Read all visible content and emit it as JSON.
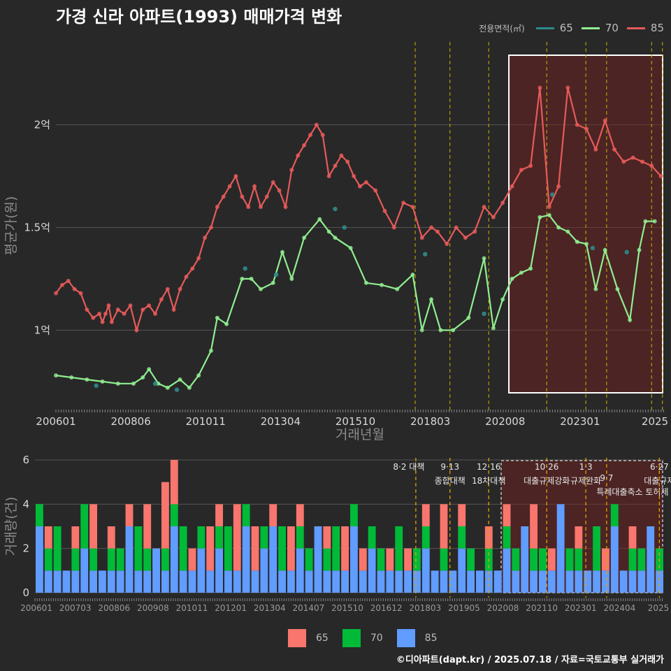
{
  "title": "가경 신라 아파트(1993) 매매가격 변화",
  "legend": {
    "title": "전용면적(㎡)",
    "items": [
      {
        "label": "65",
        "color": "#2e8b8b"
      },
      {
        "label": "70",
        "color": "#90ee90"
      },
      {
        "label": "85",
        "color": "#e85a5a"
      }
    ]
  },
  "bar_legend": [
    {
      "label": "65",
      "color": "#f8766d"
    },
    {
      "label": "70",
      "color": "#00ba38"
    },
    {
      "label": "85",
      "color": "#619cff"
    }
  ],
  "footer": "©디아파트(dapt.kr) / 2025.07.18 / 자료=국토교통부 실거래가",
  "chart_data": [
    {
      "type": "line",
      "title": "가경 신라 아파트(1993) 매매가격 변화",
      "xlabel": "거래년월",
      "ylabel": "평균가(원)",
      "x_ticks": [
        "200601",
        "200806",
        "201011",
        "201304",
        "201510",
        "201803",
        "202008",
        "202301",
        "2025"
      ],
      "y_ticks": [
        {
          "value": 1.0,
          "label": "1억"
        },
        {
          "value": 1.5,
          "label": "1.5억"
        },
        {
          "value": 2.0,
          "label": "2억"
        }
      ],
      "ylim": [
        0.6,
        2.42
      ],
      "xlim": [
        2006.0,
        2025.6
      ],
      "policy_lines": [
        2017.58,
        2018.7,
        2019.95,
        2021.82,
        2023.08,
        2023.75,
        2025.2,
        2025.55
      ],
      "highlight_range": [
        2020.6,
        2025.6
      ],
      "series": [
        {
          "name": "85",
          "color": "#e85a5a",
          "x": [
            2006.0,
            2006.2,
            2006.4,
            2006.6,
            2006.8,
            2007.0,
            2007.2,
            2007.4,
            2007.5,
            2007.6,
            2007.7,
            2007.8,
            2008.0,
            2008.2,
            2008.4,
            2008.6,
            2008.8,
            2009.0,
            2009.2,
            2009.4,
            2009.6,
            2009.8,
            2010.0,
            2010.2,
            2010.4,
            2010.6,
            2010.8,
            2011.0,
            2011.2,
            2011.4,
            2011.6,
            2011.8,
            2012.0,
            2012.2,
            2012.4,
            2012.6,
            2012.8,
            2013.0,
            2013.2,
            2013.4,
            2013.6,
            2013.8,
            2014.0,
            2014.2,
            2014.4,
            2014.6,
            2014.8,
            2015.0,
            2015.2,
            2015.4,
            2015.6,
            2015.8,
            2016.0,
            2016.3,
            2016.6,
            2016.9,
            2017.2,
            2017.5,
            2017.8,
            2018.1,
            2018.3,
            2018.6,
            2018.9,
            2019.2,
            2019.5,
            2019.8,
            2020.1,
            2020.4,
            2020.7,
            2021.0,
            2021.3,
            2021.6,
            2021.9,
            2022.2,
            2022.5,
            2022.8,
            2023.1,
            2023.4,
            2023.7,
            2024.0,
            2024.3,
            2024.6,
            2024.9,
            2025.2,
            2025.5
          ],
          "values": [
            1.18,
            1.22,
            1.24,
            1.2,
            1.18,
            1.1,
            1.06,
            1.08,
            1.04,
            1.08,
            1.12,
            1.04,
            1.1,
            1.08,
            1.12,
            1.0,
            1.1,
            1.12,
            1.08,
            1.15,
            1.2,
            1.1,
            1.2,
            1.26,
            1.3,
            1.35,
            1.45,
            1.5,
            1.6,
            1.65,
            1.7,
            1.75,
            1.65,
            1.6,
            1.7,
            1.6,
            1.65,
            1.72,
            1.68,
            1.6,
            1.78,
            1.85,
            1.9,
            1.95,
            2.0,
            1.95,
            1.75,
            1.8,
            1.85,
            1.82,
            1.75,
            1.7,
            1.72,
            1.68,
            1.58,
            1.5,
            1.62,
            1.6,
            1.45,
            1.5,
            1.48,
            1.42,
            1.5,
            1.45,
            1.48,
            1.6,
            1.55,
            1.62,
            1.7,
            1.78,
            1.8,
            2.18,
            1.6,
            1.7,
            2.18,
            2.0,
            1.98,
            1.88,
            2.02,
            1.88,
            1.82,
            1.84,
            1.82,
            1.8,
            1.75
          ]
        },
        {
          "name": "70",
          "color": "#90ee90",
          "x": [
            2006.0,
            2006.5,
            2007.0,
            2007.5,
            2008.0,
            2008.5,
            2008.8,
            2009.0,
            2009.3,
            2009.6,
            2010.0,
            2010.3,
            2010.6,
            2011.0,
            2011.2,
            2011.5,
            2012.0,
            2012.3,
            2012.6,
            2013.0,
            2013.3,
            2013.6,
            2014.0,
            2014.5,
            2014.8,
            2015.0,
            2015.5,
            2016.0,
            2016.5,
            2017.0,
            2017.5,
            2017.8,
            2018.1,
            2018.4,
            2018.8,
            2019.3,
            2019.8,
            2020.1,
            2020.4,
            2020.7,
            2021.0,
            2021.3,
            2021.6,
            2021.9,
            2022.2,
            2022.5,
            2022.8,
            2023.1,
            2023.4,
            2023.7,
            2024.1,
            2024.5,
            2024.8,
            2025.0,
            2025.3
          ],
          "values": [
            0.78,
            0.77,
            0.76,
            0.75,
            0.74,
            0.74,
            0.77,
            0.81,
            0.74,
            0.72,
            0.76,
            0.72,
            0.78,
            0.9,
            1.06,
            1.03,
            1.25,
            1.25,
            1.2,
            1.23,
            1.38,
            1.25,
            1.45,
            1.54,
            1.48,
            1.45,
            1.4,
            1.23,
            1.22,
            1.2,
            1.27,
            1.0,
            1.15,
            1.0,
            1.0,
            1.06,
            1.35,
            1.01,
            1.15,
            1.25,
            1.28,
            1.3,
            1.55,
            1.56,
            1.5,
            1.48,
            1.43,
            1.42,
            1.2,
            1.39,
            1.2,
            1.05,
            1.39,
            1.53,
            1.53
          ]
        }
      ]
    },
    {
      "type": "bar",
      "title": "",
      "xlabel": "",
      "ylabel": "거래량(건)",
      "y_ticks": [
        "0",
        "2",
        "4",
        "6"
      ],
      "ylim": [
        0,
        6
      ],
      "x_ticks": [
        "200601",
        "200703",
        "200806",
        "200908",
        "201011",
        "201201",
        "201304",
        "201407",
        "201510",
        "201612",
        "201803",
        "201905",
        "202008",
        "202110",
        "202301",
        "202404",
        "2025"
      ],
      "policy_annotations": [
        {
          "x": 2017.6,
          "label": "8·2 대책",
          "label2": ""
        },
        {
          "x": 2018.7,
          "label": "9·13",
          "label2": "종합대책"
        },
        {
          "x": 2019.95,
          "label": "12·16",
          "label2": "18차대책"
        },
        {
          "x": 2021.82,
          "label": "10·26",
          "label2": "대출규제강화"
        },
        {
          "x": 2023.08,
          "label": "1·3",
          "label2": "규제완화"
        },
        {
          "x": 2023.75,
          "label": "9·7",
          "label2": "특례대출축소 토허제 해제"
        },
        {
          "x": 2025.45,
          "label": "6·27",
          "label2": "대출규제"
        }
      ],
      "highlight_range": [
        2020.6,
        2025.6
      ],
      "series": [
        {
          "name": "65",
          "color": "#f8766d",
          "values": [
            0,
            1,
            0,
            0,
            1,
            0,
            2,
            0,
            1,
            0,
            1,
            0,
            2,
            0,
            3,
            2,
            0,
            1,
            0,
            2,
            1,
            0,
            3,
            0,
            2,
            0,
            1,
            0,
            2,
            1,
            0,
            0,
            1,
            0,
            2,
            0,
            1,
            0,
            0,
            1,
            0,
            1,
            0,
            1,
            0,
            2,
            0,
            1,
            0,
            0,
            1,
            0,
            1,
            0,
            0,
            2,
            0,
            1,
            0,
            0,
            1,
            0,
            0,
            1,
            0,
            0,
            1,
            0,
            0,
            0
          ]
        },
        {
          "name": "70",
          "color": "#00ba38",
          "values": [
            1,
            1,
            2,
            0,
            1,
            2,
            1,
            0,
            1,
            1,
            0,
            2,
            1,
            0,
            1,
            1,
            2,
            0,
            1,
            0,
            1,
            2,
            0,
            1,
            0,
            1,
            0,
            2,
            0,
            1,
            1,
            0,
            1,
            2,
            0,
            1,
            0,
            1,
            1,
            0,
            2,
            0,
            1,
            1,
            0,
            1,
            0,
            1,
            1,
            0,
            1,
            0,
            1,
            1,
            0,
            1,
            1,
            0,
            0,
            1,
            1,
            0,
            2,
            0,
            1,
            0,
            1,
            1,
            0,
            1
          ]
        },
        {
          "name": "85",
          "color": "#619cff",
          "values": [
            3,
            1,
            1,
            1,
            1,
            2,
            1,
            1,
            1,
            1,
            3,
            1,
            1,
            2,
            1,
            3,
            1,
            1,
            2,
            1,
            2,
            1,
            1,
            3,
            1,
            2,
            3,
            1,
            1,
            2,
            1,
            3,
            1,
            1,
            1,
            3,
            1,
            2,
            1,
            1,
            1,
            1,
            1,
            2,
            1,
            1,
            1,
            2,
            1,
            1,
            1,
            1,
            2,
            1,
            3,
            1,
            1,
            1,
            4,
            1,
            1,
            1,
            1,
            1,
            3,
            1,
            1,
            1,
            3,
            1
          ]
        }
      ]
    }
  ]
}
